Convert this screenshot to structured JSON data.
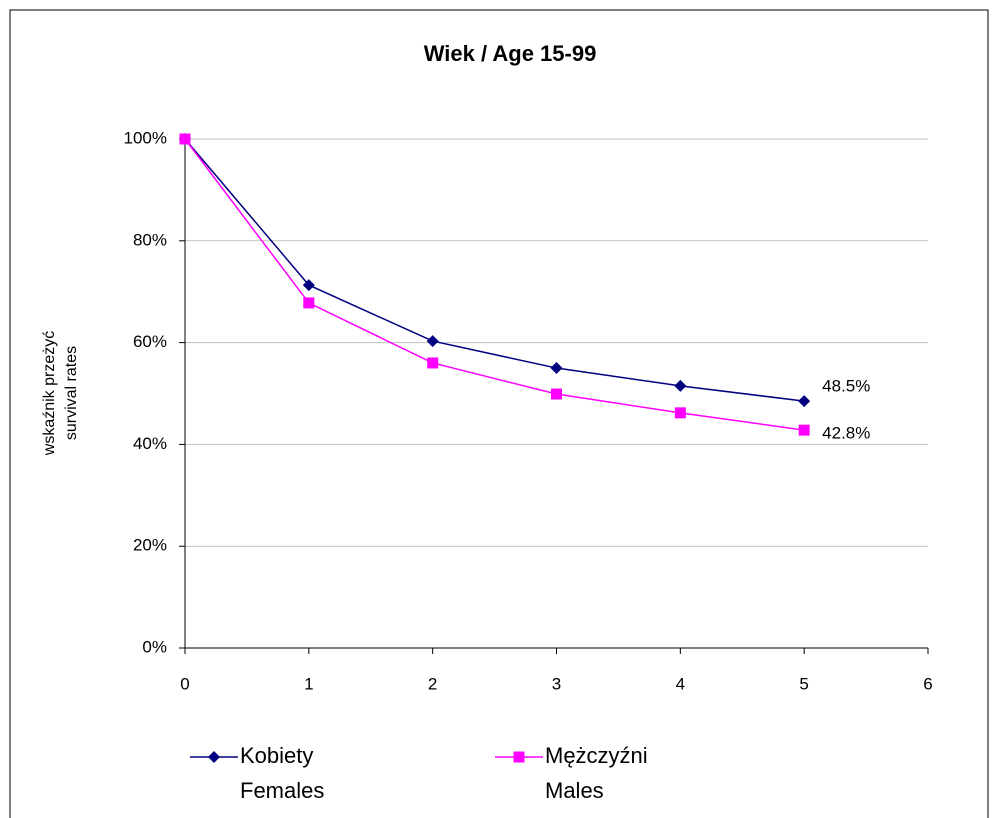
{
  "chart_data": {
    "type": "line",
    "title": "Wiek / Age 15-99",
    "y_label": [
      "wskaźnik przeżyć",
      "survival rates"
    ],
    "x": [
      0,
      1,
      2,
      3,
      4,
      5
    ],
    "xlim": [
      0,
      6
    ],
    "xticks": [
      0,
      1,
      2,
      3,
      4,
      5,
      6
    ],
    "ylim": [
      0,
      100
    ],
    "yticks": [
      {
        "value": 0,
        "label": "0%"
      },
      {
        "value": 20,
        "label": "20%"
      },
      {
        "value": 40,
        "label": "40%"
      },
      {
        "value": 60,
        "label": "60%"
      },
      {
        "value": 80,
        "label": "80%"
      },
      {
        "value": 100,
        "label": "100%"
      }
    ],
    "grid": true,
    "series": [
      {
        "name": [
          "Kobiety",
          "Females"
        ],
        "color": "#000080",
        "marker": "diamond",
        "values": [
          100,
          71.3,
          60.3,
          55.0,
          51.5,
          48.5
        ],
        "value_labels": [
          null,
          null,
          null,
          null,
          null,
          "48.5%"
        ]
      },
      {
        "name": [
          "Mężczyźni",
          "Males"
        ],
        "color": "#ff00ff",
        "marker": "square",
        "values": [
          100,
          67.8,
          56.0,
          49.9,
          46.2,
          42.8
        ],
        "value_labels": [
          null,
          null,
          null,
          null,
          null,
          "42.8%"
        ]
      }
    ]
  }
}
